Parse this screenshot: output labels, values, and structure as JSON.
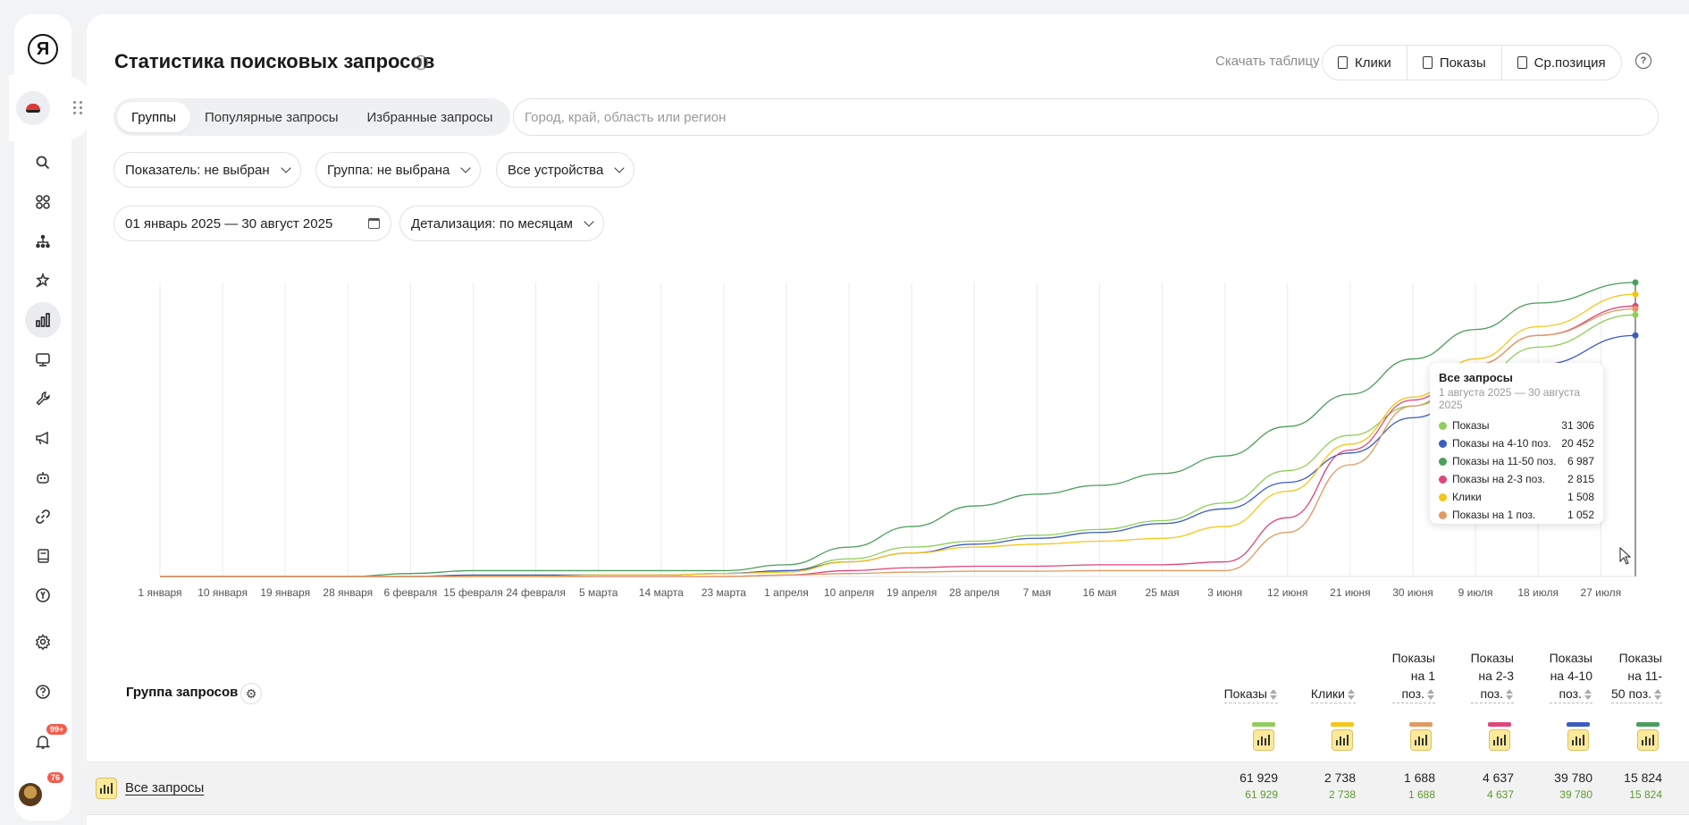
{
  "header": {
    "title": "Статистика поисковых запросов",
    "download_label": "Скачать таблицу",
    "download_buttons": [
      "Клики",
      "Показы",
      "Ср.позиция"
    ]
  },
  "tabs": [
    "Группы",
    "Популярные запросы",
    "Избранные запросы"
  ],
  "region": {
    "placeholder": "Город, край, область или регион"
  },
  "filters": {
    "indicator": "Показатель: не выбран",
    "group": "Группа: не выбрана",
    "devices": "Все устройства",
    "date_range": "01 январь 2025 — 30 август 2025",
    "detail": "Детализация: по месяцам"
  },
  "sidebar": {
    "notifications_badge": "99+",
    "avatar_badge": "76",
    "icons": [
      "search-icon",
      "apps-icon",
      "sitemap-icon",
      "magic-wand-icon",
      "chart-icon",
      "monitor-icon",
      "wrench-icon",
      "megaphone-icon",
      "robot-icon",
      "link-icon",
      "book-icon",
      "yandex-icon",
      "gear-icon",
      "help-icon",
      "bell-icon"
    ]
  },
  "chart_data": {
    "type": "line",
    "x_labels": [
      "1 января",
      "10 января",
      "19 января",
      "28 января",
      "6 февраля",
      "15 февраля",
      "24 февраля",
      "5 марта",
      "14 марта",
      "23 марта",
      "1 апреля",
      "10 апреля",
      "19 апреля",
      "28 апреля",
      "7 мая",
      "16 мая",
      "25 мая",
      "3 июня",
      "12 июня",
      "21 июня",
      "30 июня",
      "9 июля",
      "18 июля",
      "27 июля"
    ],
    "series": [
      {
        "name": "Показы на 11-50 поз.",
        "color": "#4a9e5c",
        "values": [
          0,
          0,
          0,
          0,
          0.01,
          0.02,
          0.02,
          0.02,
          0.02,
          0.02,
          0.04,
          0.1,
          0.17,
          0.24,
          0.28,
          0.31,
          0.35,
          0.41,
          0.51,
          0.62,
          0.74,
          0.84,
          0.93,
          1.0
        ]
      },
      {
        "name": "Показы",
        "color": "#8fce5a",
        "values": [
          0,
          0,
          0,
          0,
          0,
          0.005,
          0.005,
          0.005,
          0.005,
          0.01,
          0.02,
          0.06,
          0.1,
          0.12,
          0.14,
          0.16,
          0.19,
          0.25,
          0.36,
          0.48,
          0.58,
          0.68,
          0.78,
          0.89
        ]
      },
      {
        "name": "Показы на 4-10 поз.",
        "color": "#3c5cbf",
        "values": [
          0,
          0,
          0,
          0,
          0,
          0.005,
          0.005,
          0.005,
          0.005,
          0.01,
          0.02,
          0.05,
          0.08,
          0.11,
          0.13,
          0.15,
          0.18,
          0.23,
          0.32,
          0.42,
          0.54,
          0.63,
          0.72,
          0.82
        ]
      },
      {
        "name": "Клики",
        "color": "#f5c518",
        "values": [
          0,
          0,
          0,
          0,
          0,
          0,
          0,
          0.005,
          0.005,
          0.01,
          0.015,
          0.05,
          0.08,
          0.1,
          0.11,
          0.12,
          0.13,
          0.17,
          0.29,
          0.45,
          0.61,
          0.74,
          0.85,
          0.96
        ]
      },
      {
        "name": "Показы на 2-3 поз.",
        "color": "#e0457b",
        "values": [
          0,
          0,
          0,
          0,
          0,
          0,
          0,
          0,
          0,
          0,
          0.005,
          0.02,
          0.03,
          0.035,
          0.035,
          0.04,
          0.04,
          0.05,
          0.2,
          0.43,
          0.6,
          0.72,
          0.82,
          0.92
        ]
      },
      {
        "name": "Показы на 1 поз.",
        "color": "#e09a62",
        "values": [
          0,
          0,
          0,
          0,
          0,
          0,
          0,
          0,
          0,
          0,
          0.005,
          0.01,
          0.015,
          0.018,
          0.018,
          0.02,
          0.02,
          0.02,
          0.15,
          0.38,
          0.58,
          0.72,
          0.82,
          0.91
        ]
      }
    ],
    "tooltip": {
      "title": "Все запросы",
      "subtitle": "1 августа 2025 — 30 августа 2025",
      "rows": [
        {
          "label": "Показы",
          "value": "31 306",
          "color": "#8fce5a"
        },
        {
          "label": "Показы на 4-10 поз.",
          "value": "20 452",
          "color": "#3c5cbf"
        },
        {
          "label": "Показы на 11-50 поз.",
          "value": "6 987",
          "color": "#4a9e5c"
        },
        {
          "label": "Показы на 2-3 поз.",
          "value": "2 815",
          "color": "#e0457b"
        },
        {
          "label": "Клики",
          "value": "1 508",
          "color": "#f5c518"
        },
        {
          "label": "Показы на 1 поз.",
          "value": "1 052",
          "color": "#e09a62"
        }
      ]
    }
  },
  "table": {
    "group_header": "Группа запросов",
    "columns": [
      {
        "label": "Показы",
        "color": "#8fce5a"
      },
      {
        "label": "Клики",
        "color": "#f5c518"
      },
      {
        "label": "Показы на 1 поз.",
        "label_lines": [
          "Показы",
          "на 1",
          "поз."
        ],
        "color": "#e09a62"
      },
      {
        "label": "Показы на 2-3 поз.",
        "label_lines": [
          "Показы",
          "на 2-3",
          "поз."
        ],
        "color": "#e0457b"
      },
      {
        "label": "Показы на 4-10 поз.",
        "label_lines": [
          "Показы",
          "на 4-10",
          "поз."
        ],
        "color": "#3c5cbf"
      },
      {
        "label": "Показы на 11-50 поз.",
        "label_lines": [
          "Показы",
          "на 11-",
          "50 поз."
        ],
        "color": "#4a9e5c"
      }
    ],
    "rows": [
      {
        "label": "Все запросы",
        "values": [
          "61 929",
          "2 738",
          "1 688",
          "4 637",
          "39 780",
          "15 824"
        ],
        "sub_values": [
          "61 929",
          "2 738",
          "1 688",
          "4 637",
          "39 780",
          "15 824"
        ]
      }
    ]
  }
}
